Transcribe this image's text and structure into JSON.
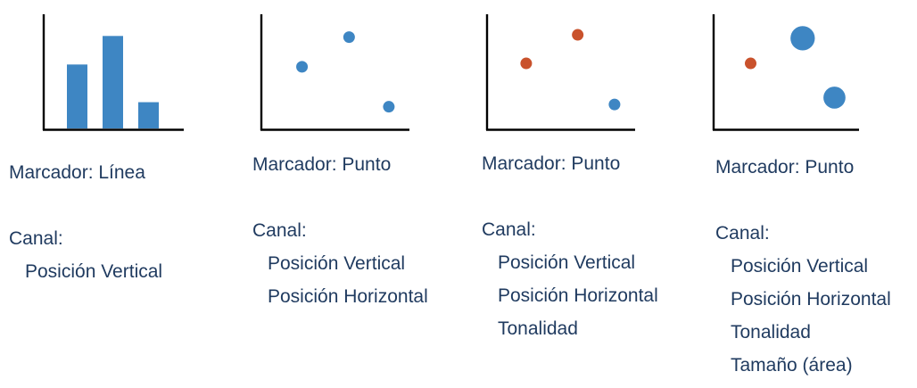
{
  "colors": {
    "blue": "#3e86c3",
    "orange": "#c9522c",
    "text": "#1f3a5f",
    "axis": "#000000"
  },
  "panels": [
    {
      "marker_text": "Marcador: Línea",
      "channel_heading": "Canal:",
      "channels": [
        "Posición  Vertical"
      ],
      "chart": {
        "type": "bar",
        "values": [
          0.56,
          0.81,
          0.23
        ],
        "colors": [
          "blue",
          "blue",
          "blue"
        ]
      }
    },
    {
      "marker_text": "Marcador: Punto",
      "channel_heading": "Canal:",
      "channels": [
        "Posición  Vertical",
        "Posición Horizontal"
      ],
      "chart": {
        "type": "scatter",
        "points": [
          {
            "x": 0.27,
            "y": 0.54,
            "color": "blue",
            "size": 1
          },
          {
            "x": 0.59,
            "y": 0.8,
            "color": "blue",
            "size": 1
          },
          {
            "x": 0.86,
            "y": 0.19,
            "color": "blue",
            "size": 1
          }
        ]
      }
    },
    {
      "marker_text": "Marcador: Punto",
      "channel_heading": "Canal:",
      "channels": [
        "Posición  Vertical",
        "Posición Horizontal",
        "Tonalidad"
      ],
      "chart": {
        "type": "scatter",
        "points": [
          {
            "x": 0.26,
            "y": 0.57,
            "color": "orange",
            "size": 1
          },
          {
            "x": 0.61,
            "y": 0.82,
            "color": "orange",
            "size": 1
          },
          {
            "x": 0.86,
            "y": 0.21,
            "color": "blue",
            "size": 1
          }
        ]
      }
    },
    {
      "marker_text": "Marcador: Punto",
      "channel_heading": "Canal:",
      "channels": [
        "Posición  Vertical",
        "Posición Horizontal",
        "Tonalidad",
        "Tamaño (área)"
      ],
      "chart": {
        "type": "scatter",
        "points": [
          {
            "x": 0.25,
            "y": 0.57,
            "color": "orange",
            "size": 1
          },
          {
            "x": 0.61,
            "y": 0.79,
            "color": "blue",
            "size": 2.1
          },
          {
            "x": 0.83,
            "y": 0.27,
            "color": "blue",
            "size": 1.9
          }
        ]
      }
    }
  ]
}
